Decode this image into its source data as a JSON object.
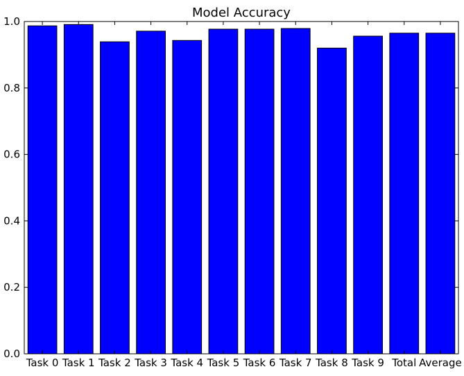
{
  "chart_data": {
    "type": "bar",
    "title": "Model Accuracy",
    "xlabel": "",
    "ylabel": "",
    "categories": [
      "Task 0",
      "Task 1",
      "Task 2",
      "Task 3",
      "Task 4",
      "Task 5",
      "Task 6",
      "Task 7",
      "Task 8",
      "Task 9",
      "Total",
      "Average"
    ],
    "values": [
      0.987,
      0.991,
      0.939,
      0.971,
      0.943,
      0.977,
      0.977,
      0.979,
      0.92,
      0.956,
      0.965,
      0.965
    ],
    "ylim": [
      0,
      1.0
    ],
    "yticks": [
      0.0,
      0.2,
      0.4,
      0.6,
      0.8,
      1.0
    ],
    "ytick_labels": [
      "0.0",
      "0.2",
      "0.4",
      "0.6",
      "0.8",
      "1.0"
    ],
    "bar_color": "#0000ff",
    "grid": false,
    "legend": "none"
  }
}
